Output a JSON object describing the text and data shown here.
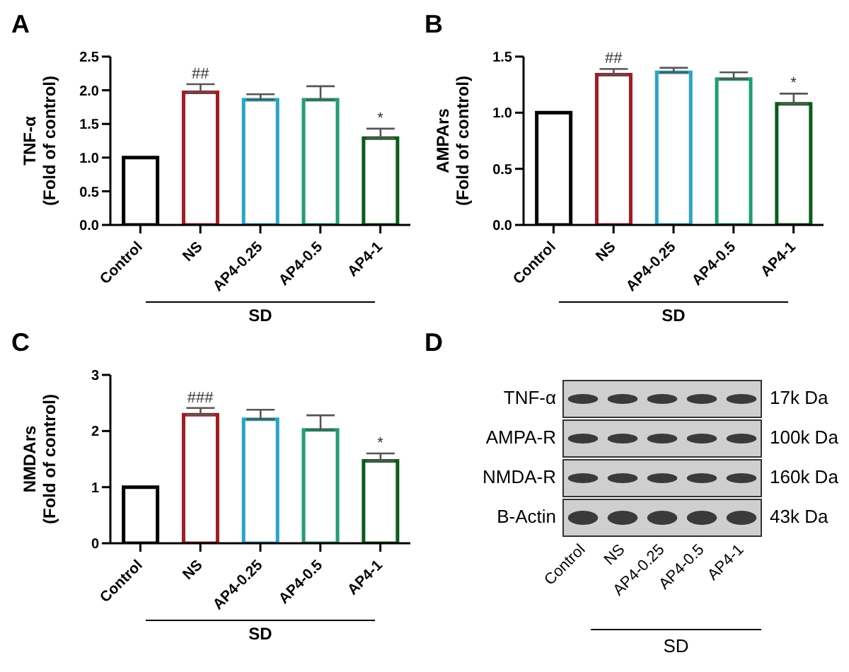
{
  "chart_data": [
    {
      "type": "bar",
      "title": "A",
      "ylabel": "TNF-α\n(Fold of control)",
      "categories": [
        "Control",
        "NS",
        "AP4-0.25",
        "AP4-0.5",
        "AP4-1"
      ],
      "values": [
        1.0,
        1.97,
        1.86,
        1.86,
        1.29
      ],
      "colors": [
        "#000000",
        "#a01c24",
        "#2aa3c4",
        "#1f9e73",
        "#0d5c1a"
      ],
      "errors": [
        null,
        [
          1.97,
          2.09
        ],
        [
          1.86,
          1.94
        ],
        [
          1.86,
          2.06
        ],
        [
          1.29,
          1.43
        ]
      ],
      "ylim": [
        0,
        2.5
      ],
      "yticks": [
        {
          "value": 0,
          "label": "0.0"
        },
        {
          "value": 0.5,
          "label": "0.5"
        },
        {
          "value": 1,
          "label": "1.0"
        },
        {
          "value": 1.5,
          "label": "1.5"
        },
        {
          "value": 2,
          "label": "2.0"
        },
        {
          "value": 2.5,
          "label": "2.5"
        }
      ],
      "annotations": [
        {
          "text": "##",
          "x": "NS",
          "y": 2.09
        },
        {
          "text": "*",
          "x": "AP4-1",
          "y": 1.43
        },
        "SD"
      ]
    },
    {
      "type": "bar",
      "title": "B",
      "ylabel": "AMPArs\n(Fold of control)",
      "categories": [
        "Control",
        "NS",
        "AP4-0.25",
        "AP4-0.5",
        "AP4-1"
      ],
      "values": [
        1.0,
        1.34,
        1.36,
        1.3,
        1.08
      ],
      "colors": [
        "#000000",
        "#a01c24",
        "#2aa3c4",
        "#1f9e73",
        "#0d5c1a"
      ],
      "errors": [
        null,
        [
          1.34,
          1.39
        ],
        [
          1.36,
          1.4
        ],
        [
          1.3,
          1.36
        ],
        [
          1.08,
          1.17
        ]
      ],
      "ylim": [
        0,
        1.5
      ],
      "yticks": [
        {
          "value": 0,
          "label": "0.0"
        },
        {
          "value": 0.5,
          "label": "0.5"
        },
        {
          "value": 1,
          "label": "1.0"
        },
        {
          "value": 1.5,
          "label": "1.5"
        }
      ],
      "annotations": [
        {
          "text": "##",
          "x": "NS",
          "y": 1.39
        },
        {
          "text": "*",
          "x": "AP4-1",
          "y": 1.17
        },
        "SD"
      ]
    },
    {
      "type": "bar",
      "title": "C",
      "ylabel": "NMDArs\n(Fold of control)",
      "categories": [
        "Control",
        "NS",
        "AP4-0.25",
        "AP4-0.5",
        "AP4-1"
      ],
      "values": [
        1.0,
        2.29,
        2.21,
        2.02,
        1.47
      ],
      "colors": [
        "#000000",
        "#a01c24",
        "#2aa3c4",
        "#1f9e73",
        "#0d5c1a"
      ],
      "errors": [
        null,
        [
          2.29,
          2.41
        ],
        [
          2.21,
          2.38
        ],
        [
          2.02,
          2.28
        ],
        [
          1.47,
          1.6
        ]
      ],
      "ylim": [
        0,
        3
      ],
      "yticks": [
        0,
        1,
        2,
        3
      ],
      "annotations": [
        {
          "text": "###",
          "x": "NS",
          "y": 2.41
        },
        {
          "text": "*",
          "x": "AP4-1",
          "y": 1.6
        },
        "SD"
      ]
    },
    {
      "type": "other",
      "title": "D",
      "categories": [
        "Control",
        "NS",
        "AP4-0.25",
        "AP4-0.5",
        "AP4-1"
      ],
      "y_categories": [
        "TNF-α",
        "AMPA-R",
        "NMDA-R",
        "B-Actin"
      ],
      "y2_categories": [
        "17k Da",
        "100k Da",
        "160k Da",
        "43k Da"
      ],
      "annotations": [
        "SD"
      ]
    }
  ]
}
